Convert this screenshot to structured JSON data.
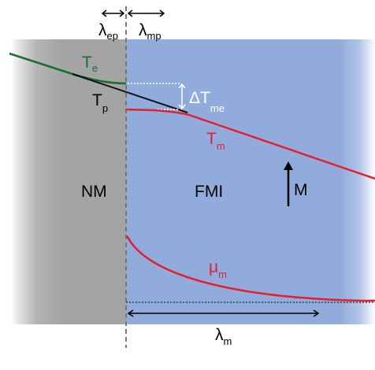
{
  "regions": {
    "nm_label": "NM",
    "fmi_label": "FMI"
  },
  "lengths": {
    "lambda_ep": {
      "main": "λ",
      "sub": "ep"
    },
    "lambda_mp": {
      "main": "λ",
      "sub": "mp"
    },
    "lambda_m": {
      "main": "λ",
      "sub": "m"
    }
  },
  "curves": {
    "electron_temp": {
      "main": "T",
      "sub": "e"
    },
    "phonon_temp": {
      "main": "T",
      "sub": "p"
    },
    "magnon_temp": {
      "main": "T",
      "sub": "m"
    },
    "temp_difference": {
      "main": "ΔT",
      "sub": "me"
    },
    "magnon_potential": {
      "main": "μ",
      "sub": "m"
    }
  },
  "magnetization": {
    "label": "M"
  },
  "colors": {
    "nm_gray": "#a3a4a3",
    "fmi_blue": "#91acdc",
    "electron_green": "#1a6e34",
    "phonon_black": "#111111",
    "magnon_red": "#e3202e",
    "annotation_white": "#ffffff"
  }
}
